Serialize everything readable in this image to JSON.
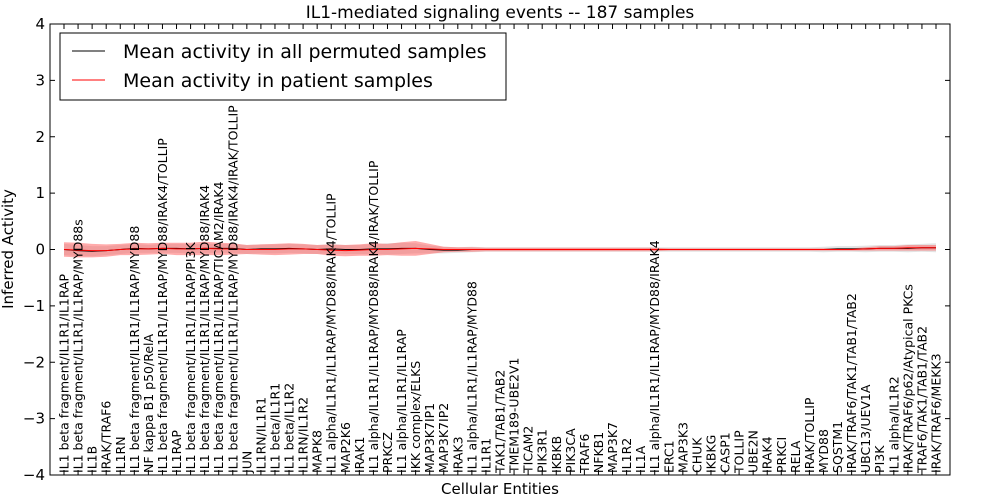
{
  "chart_data": {
    "type": "line",
    "title": "IL1-mediated signaling events -- 187 samples",
    "xlabel": "Cellular Entities",
    "ylabel": "Inferred Activity",
    "ylim": [
      -4,
      4
    ],
    "yticks": [
      "−4",
      "−3",
      "−2",
      "−1",
      "0",
      "1",
      "2",
      "3",
      "4"
    ],
    "legend_position": "upper-left",
    "categories": [
      "IL1 beta fragment/IL1R1/IL1RAP",
      "IL1 beta fragment/IL1R1/IL1RAP/MYD88s",
      "IL1B",
      "IRAK/TRAF6",
      "IL1RN",
      "IL1 beta fragment/IL1R1/IL1RAP/MYD88",
      "NF kappa B1 p50/RelA",
      "IL1 beta fragment/IL1R1/IL1RAP/MYD88/IRAK4/TOLLIP",
      "IL1RAP",
      "IL1 beta fragment/IL1R1/IL1RAP/PI3K",
      "IL1 beta fragment/IL1R1/IL1RAP/MYD88/IRAK4",
      "IL1 beta fragment/IL1R1/IL1RAP/TICAM2/IRAK4",
      "IL1 beta fragment/IL1R1/IL1RAP/MYD88/IRAK4/IRAK/TOLLIP",
      "JUN",
      "IL1RN/IL1R1",
      "IL1 beta/IL1R1",
      "IL1 beta/IL1R2",
      "IL1RN/IL1R2",
      "MAPK8",
      "IL1 alpha/IL1R1/IL1RAP/MYD88/IRAK4/TOLLIP",
      "MAP2K6",
      "IRAK1",
      "IL1 alpha/IL1R1/IL1RAP/MYD88/IRAK4/IRAK/TOLLIP",
      "PRKCZ",
      "IL1 alpha/IL1R1/IL1RAP",
      "IKK complex/ELKS",
      "MAP3K7IP1",
      "MAP3K7IP2",
      "IRAK3",
      "IL1 alpha/IL1R1/IL1RAP/MYD88",
      "IL1R1",
      "TAK1/TAB1/TAB2",
      "TMEM189-UBE2V1",
      "TICAM2",
      "PIK3R1",
      "IKBKB",
      "PIK3CA",
      "TRAF6",
      "NFKB1",
      "MAP3K7",
      "IL1R2",
      "IL1A",
      "IL1 alpha/IL1R1/IL1RAP/MYD88/IRAK4",
      "ERC1",
      "MAP3K3",
      "CHUK",
      "IKBKG",
      "CASP1",
      "TOLLIP",
      "UBE2N",
      "IRAK4",
      "PRKCI",
      "RELA",
      "IRAK/TOLLIP",
      "MYD88",
      "SQSTM1",
      "IRAK/TRAF6/TAK1/TAB1/TAB2",
      "UBC13/UEV1A",
      "PI3K",
      "IL1 alpha/IL1R2",
      "IRAK/TRAF6/p62/Atypical PKCs",
      "TRAF6/TAK1/TAB1/TAB2",
      "IRAK/TRAF6/MEKK3"
    ],
    "series": [
      {
        "name": "Mean activity in all permuted samples",
        "color": "#000000",
        "values": [
          0.0,
          -0.02,
          -0.03,
          -0.02,
          0.0,
          0.02,
          0.01,
          0.02,
          0.02,
          0.01,
          0.02,
          0.02,
          0.02,
          0.0,
          0.01,
          0.01,
          0.02,
          0.01,
          0.0,
          0.01,
          0.0,
          0.0,
          0.01,
          0.01,
          0.02,
          0.02,
          0.0,
          -0.01,
          -0.01,
          0.0,
          0.0,
          0.0,
          0.0,
          0.0,
          0.0,
          0.0,
          0.0,
          0.0,
          0.0,
          0.0,
          0.0,
          0.0,
          0.0,
          0.0,
          0.0,
          0.0,
          0.0,
          0.0,
          0.0,
          0.0,
          0.0,
          0.0,
          0.0,
          0.0,
          0.0,
          0.01,
          0.01,
          0.01,
          0.02,
          0.02,
          0.02,
          0.03,
          0.03
        ],
        "band": [
          0.1,
          0.1,
          0.09,
          0.08,
          0.08,
          0.08,
          0.07,
          0.08,
          0.08,
          0.08,
          0.08,
          0.08,
          0.08,
          0.08,
          0.08,
          0.08,
          0.08,
          0.08,
          0.08,
          0.08,
          0.08,
          0.08,
          0.09,
          0.1,
          0.1,
          0.09,
          0.07,
          0.06,
          0.05,
          0.05,
          0.04,
          0.04,
          0.04,
          0.04,
          0.04,
          0.04,
          0.04,
          0.04,
          0.04,
          0.04,
          0.04,
          0.04,
          0.04,
          0.04,
          0.04,
          0.04,
          0.04,
          0.04,
          0.04,
          0.04,
          0.04,
          0.04,
          0.04,
          0.04,
          0.05,
          0.05,
          0.05,
          0.06,
          0.06,
          0.06,
          0.07,
          0.07,
          0.08
        ],
        "band_color": "#cccccc"
      },
      {
        "name": "Mean activity in patient samples",
        "color": "#ff0000",
        "values": [
          0.0,
          -0.01,
          -0.02,
          -0.02,
          0.0,
          0.01,
          0.01,
          0.02,
          0.01,
          0.01,
          0.02,
          0.01,
          0.01,
          0.0,
          0.0,
          0.0,
          0.01,
          0.01,
          0.0,
          -0.01,
          -0.02,
          -0.01,
          0.0,
          0.0,
          0.01,
          0.02,
          0.01,
          0.0,
          0.0,
          0.0,
          0.0,
          0.0,
          0.0,
          0.0,
          0.0,
          0.0,
          0.0,
          0.0,
          0.0,
          0.0,
          0.0,
          0.0,
          0.0,
          0.0,
          0.0,
          0.0,
          0.0,
          0.0,
          0.0,
          0.0,
          0.0,
          0.0,
          0.0,
          0.0,
          0.0,
          0.0,
          0.0,
          0.01,
          0.02,
          0.02,
          0.03,
          0.03,
          0.03
        ],
        "band": [
          0.13,
          0.13,
          0.12,
          0.11,
          0.1,
          0.11,
          0.1,
          0.1,
          0.11,
          0.11,
          0.12,
          0.11,
          0.1,
          0.08,
          0.09,
          0.1,
          0.1,
          0.09,
          0.08,
          0.1,
          0.1,
          0.1,
          0.11,
          0.1,
          0.12,
          0.13,
          0.09,
          0.05,
          0.04,
          0.04,
          0.03,
          0.03,
          0.03,
          0.03,
          0.03,
          0.03,
          0.03,
          0.03,
          0.03,
          0.03,
          0.03,
          0.03,
          0.03,
          0.02,
          0.02,
          0.02,
          0.02,
          0.02,
          0.02,
          0.02,
          0.02,
          0.02,
          0.02,
          0.02,
          0.02,
          0.02,
          0.02,
          0.03,
          0.04,
          0.04,
          0.05,
          0.05,
          0.05
        ],
        "band_color": "#ff6666"
      }
    ]
  }
}
